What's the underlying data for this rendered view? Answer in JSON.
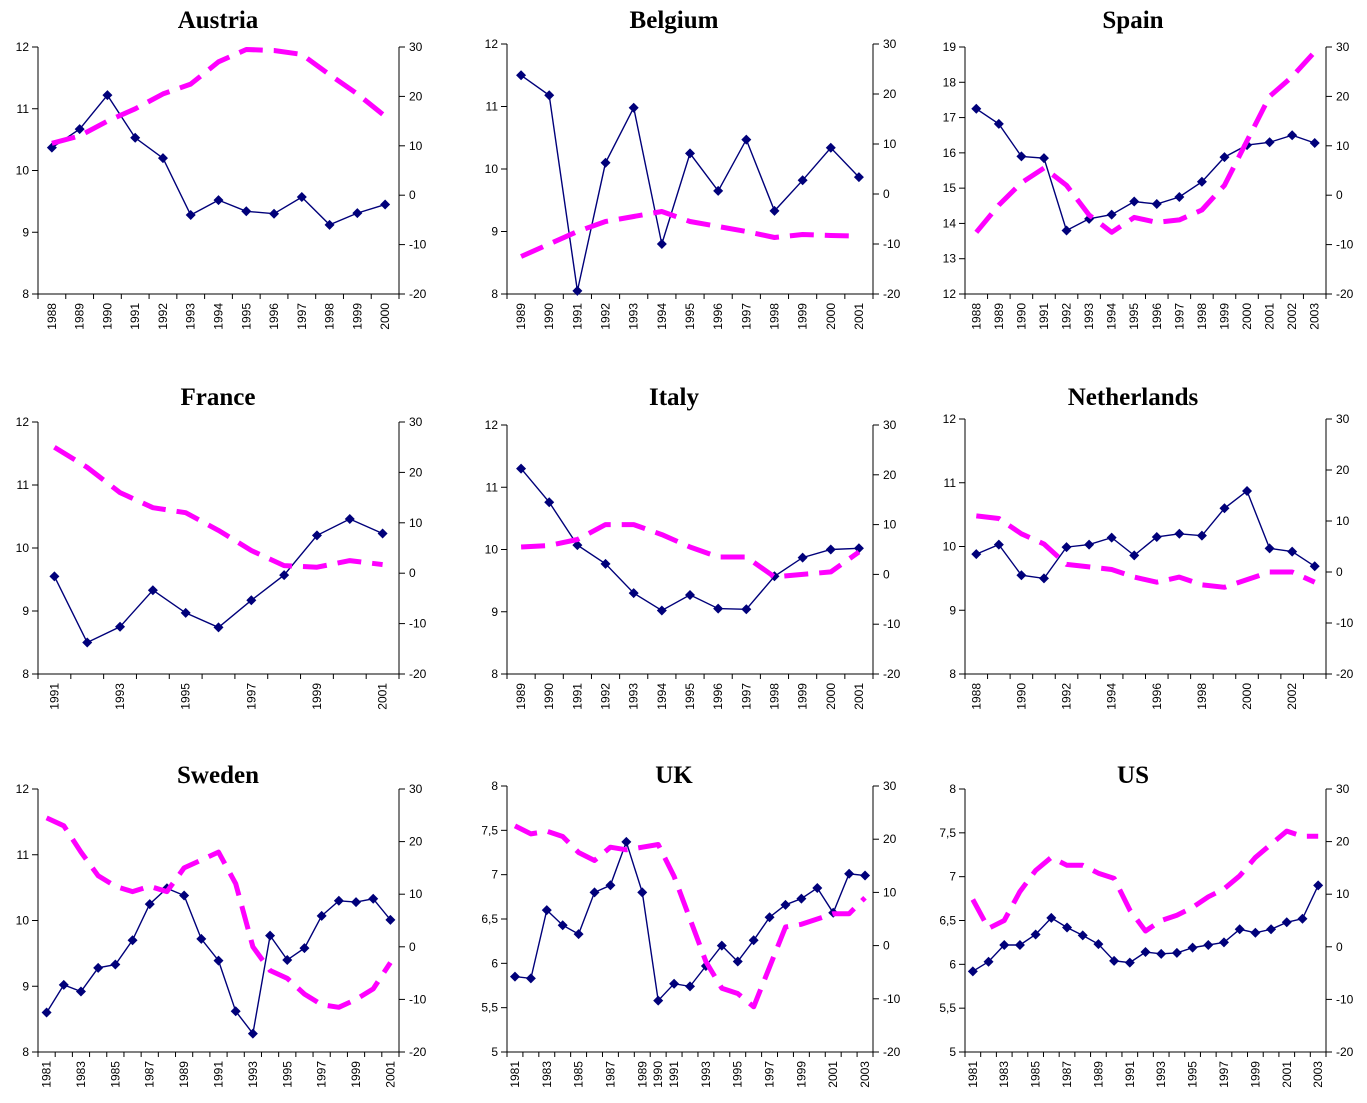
{
  "colors": {
    "solid": "#00007a",
    "dashed": "#ff00ff",
    "axis": "#000000"
  },
  "chart_data": [
    {
      "type": "line",
      "title": "Austria",
      "x": [
        1988,
        1989,
        1990,
        1991,
        1992,
        1993,
        1994,
        1995,
        1996,
        1997,
        1998,
        1999,
        2000
      ],
      "xtick_labels": [
        "1988",
        "1989",
        "1990",
        "1991",
        "1992",
        "1993",
        "1994",
        "1995",
        "1996",
        "1997",
        "1998",
        "1999",
        "2000"
      ],
      "ylim": [
        8,
        12
      ],
      "yticks": [
        "8",
        "9",
        "10",
        "11",
        "12"
      ],
      "y2lim": [
        -20,
        30
      ],
      "y2ticks": [
        "-20",
        "-10",
        "0",
        "10",
        "20",
        "30"
      ],
      "series": [
        {
          "axis": "left",
          "style": "solid-markers",
          "values": [
            10.37,
            10.67,
            11.22,
            10.53,
            10.2,
            9.28,
            9.52,
            9.34,
            9.3,
            9.57,
            9.12,
            9.31,
            9.45
          ]
        },
        {
          "axis": "right",
          "style": "dashed",
          "values": [
            10.5,
            12,
            15,
            17.5,
            20.5,
            22.5,
            27,
            29.5,
            29.3,
            28.5,
            24.4,
            20.5,
            16
          ]
        }
      ]
    },
    {
      "type": "line",
      "title": "Belgium",
      "x": [
        1989,
        1990,
        1991,
        1992,
        1993,
        1994,
        1995,
        1996,
        1997,
        1998,
        1999,
        2000,
        2001
      ],
      "xtick_labels": [
        "1989",
        "1990",
        "1991",
        "1992",
        "1993",
        "1994",
        "1995",
        "1996",
        "1997",
        "1998",
        "1999",
        "2000",
        "2001"
      ],
      "ylim": [
        8,
        12
      ],
      "yticks": [
        "8",
        "9",
        "10",
        "11",
        "12"
      ],
      "y2lim": [
        -20,
        30
      ],
      "y2ticks": [
        "-20",
        "-10",
        "0",
        "10",
        "20",
        "30"
      ],
      "series": [
        {
          "axis": "left",
          "style": "solid-markers",
          "values": [
            11.5,
            11.18,
            8.05,
            10.1,
            10.98,
            8.8,
            10.25,
            9.65,
            10.47,
            9.33,
            9.82,
            10.34,
            9.87
          ]
        },
        {
          "axis": "right",
          "style": "dashed",
          "values": [
            -12.5,
            -10,
            -7.5,
            -5.5,
            -4.5,
            -3.5,
            -5.5,
            -6.5,
            -7.5,
            -8.7,
            -8.1,
            -8.3,
            -8.4
          ]
        }
      ]
    },
    {
      "type": "line",
      "title": "Spain",
      "x": [
        1988,
        1989,
        1990,
        1991,
        1992,
        1993,
        1994,
        1995,
        1996,
        1997,
        1998,
        1999,
        2000,
        2001,
        2002,
        2003
      ],
      "xtick_labels": [
        "1988",
        "1989",
        "1990",
        "1991",
        "1992",
        "1993",
        "1994",
        "1995",
        "1996",
        "1997",
        "1998",
        "1999",
        "2000",
        "2001",
        "2002",
        "2003"
      ],
      "ylim": [
        12,
        19
      ],
      "yticks": [
        "12",
        "13",
        "14",
        "15",
        "16",
        "17",
        "18",
        "19"
      ],
      "y2lim": [
        -20,
        30
      ],
      "y2ticks": [
        "-20",
        "-10",
        "0",
        "10",
        "20",
        "30"
      ],
      "series": [
        {
          "axis": "left",
          "style": "solid-markers",
          "values": [
            17.25,
            16.82,
            15.9,
            15.85,
            13.8,
            14.13,
            14.25,
            14.62,
            14.55,
            14.75,
            15.18,
            15.88,
            16.22,
            16.3,
            16.5,
            16.28
          ]
        },
        {
          "axis": "right",
          "style": "dashed",
          "values": [
            -7.5,
            -2,
            2.5,
            5.5,
            2,
            -4,
            -7.5,
            -4.5,
            -5.5,
            -5,
            -3,
            2,
            11,
            20,
            24,
            29
          ]
        }
      ]
    },
    {
      "type": "line",
      "title": "France",
      "x": [
        1991,
        1992,
        1993,
        1994,
        1995,
        1996,
        1997,
        1998,
        1999,
        2000,
        2001
      ],
      "xtick_labels": [
        "1991",
        "",
        "1993",
        "",
        "1995",
        "",
        "1997",
        "",
        "1999",
        "",
        "2001"
      ],
      "ylim": [
        8,
        12
      ],
      "yticks": [
        "8",
        "9",
        "10",
        "11",
        "12"
      ],
      "y2lim": [
        -20,
        30
      ],
      "y2ticks": [
        "-20",
        "-10",
        "0",
        "10",
        "20",
        "30"
      ],
      "series": [
        {
          "axis": "left",
          "style": "solid-markers",
          "values": [
            9.55,
            8.5,
            8.75,
            9.33,
            8.97,
            8.74,
            9.17,
            9.57,
            10.2,
            10.46,
            10.23
          ]
        },
        {
          "axis": "right",
          "style": "dashed",
          "values": [
            25,
            21,
            16,
            13,
            12,
            8.5,
            4.5,
            1.5,
            1.2,
            2.5,
            1.7
          ]
        }
      ]
    },
    {
      "type": "line",
      "title": "Italy",
      "x": [
        1989,
        1990,
        1991,
        1992,
        1993,
        1994,
        1995,
        1996,
        1997,
        1998,
        1999,
        2000,
        2001
      ],
      "xtick_labels": [
        "1989",
        "1990",
        "1991",
        "1992",
        "1993",
        "1994",
        "1995",
        "1996",
        "1997",
        "1998",
        "1999",
        "2000",
        "2001"
      ],
      "ylim": [
        8,
        12
      ],
      "yticks": [
        "8",
        "9",
        "10",
        "11",
        "12"
      ],
      "y2lim": [
        -20,
        30
      ],
      "y2ticks": [
        "-20",
        "-10",
        "0",
        "10",
        "20",
        "30"
      ],
      "series": [
        {
          "axis": "left",
          "style": "solid-markers",
          "values": [
            11.3,
            10.76,
            10.07,
            9.77,
            9.3,
            9.02,
            9.27,
            9.05,
            9.04,
            9.57,
            9.87,
            10,
            10.02
          ]
        },
        {
          "axis": "right",
          "style": "dashed",
          "values": [
            5.5,
            5.8,
            7,
            10,
            10,
            8,
            5.5,
            3.5,
            3.5,
            -0.5,
            0,
            0.5,
            4.5
          ]
        }
      ]
    },
    {
      "type": "line",
      "title": "Netherlands",
      "x": [
        1988,
        1989,
        1990,
        1991,
        1992,
        1993,
        1994,
        1995,
        1996,
        1997,
        1998,
        1999,
        2000,
        2001,
        2002,
        2003
      ],
      "xtick_labels": [
        "1988",
        "",
        "1990",
        "",
        "1992",
        "",
        "1994",
        "",
        "1996",
        "",
        "1998",
        "",
        "2000",
        "",
        "2002",
        ""
      ],
      "ylim": [
        8,
        12
      ],
      "yticks": [
        "8",
        "9",
        "10",
        "11",
        "12"
      ],
      "y2lim": [
        -20,
        30
      ],
      "y2ticks": [
        "-20",
        "-10",
        "0",
        "10",
        "20",
        "30"
      ],
      "series": [
        {
          "axis": "left",
          "style": "solid-markers",
          "values": [
            9.88,
            10.03,
            9.55,
            9.5,
            9.99,
            10.03,
            10.14,
            9.86,
            10.15,
            10.2,
            10.17,
            10.6,
            10.87,
            9.97,
            9.92,
            9.69
          ]
        },
        {
          "axis": "right",
          "style": "dashed",
          "values": [
            11,
            10.5,
            7.5,
            5.5,
            1.5,
            1,
            0.5,
            -1,
            -2,
            -1,
            -2.5,
            -3,
            -1.5,
            0,
            0,
            -2
          ]
        }
      ]
    },
    {
      "type": "line",
      "title": "Sweden",
      "x": [
        1981,
        1982,
        1983,
        1984,
        1985,
        1986,
        1987,
        1988,
        1989,
        1990,
        1991,
        1992,
        1993,
        1994,
        1995,
        1996,
        1997,
        1998,
        1999,
        2000,
        2001
      ],
      "xtick_labels": [
        "1981",
        "",
        "1983",
        "",
        "1985",
        "",
        "1987",
        "",
        "1989",
        "",
        "1991",
        "",
        "1993",
        "",
        "1995",
        "",
        "1997",
        "",
        "1999",
        "",
        "2001"
      ],
      "ylim": [
        8,
        12
      ],
      "yticks": [
        "8",
        "9",
        "10",
        "11",
        "12"
      ],
      "y2lim": [
        -20,
        30
      ],
      "y2ticks": [
        "-20",
        "-10",
        "0",
        "10",
        "20",
        "30"
      ],
      "series": [
        {
          "axis": "left",
          "style": "solid-markers",
          "values": [
            8.6,
            9.02,
            8.92,
            9.28,
            9.33,
            9.7,
            10.25,
            10.49,
            10.38,
            9.72,
            9.39,
            8.62,
            8.28,
            9.77,
            9.4,
            9.58,
            10.07,
            10.3,
            10.28,
            10.33,
            10.01
          ]
        },
        {
          "axis": "right",
          "style": "dashed",
          "values": [
            24.5,
            23,
            18,
            13.5,
            11.5,
            10.5,
            11.5,
            10.5,
            15,
            16.5,
            18,
            12,
            0,
            -4.5,
            -6,
            -9,
            -11,
            -11.5,
            -10,
            -8,
            -3
          ]
        }
      ]
    },
    {
      "type": "line",
      "title": "UK",
      "x": [
        1981,
        1982,
        1983,
        1984,
        1985,
        1986,
        1987,
        1988,
        1989,
        1990,
        1991,
        1992,
        1993,
        1994,
        1995,
        1996,
        1997,
        1998,
        1999,
        2000,
        2001,
        2002,
        2003
      ],
      "xtick_labels": [
        "1981",
        "",
        "1983",
        "",
        "1985",
        "",
        "1987",
        "",
        "1989",
        "1990",
        "1991",
        "",
        "1993",
        "",
        "1995",
        "",
        "1997",
        "",
        "1999",
        "",
        "2001",
        "",
        "2003"
      ],
      "ylim": [
        5,
        8
      ],
      "yticks": [
        "5",
        "5,5",
        "6",
        "6,5",
        "7",
        "7,5",
        "8"
      ],
      "y2lim": [
        -20,
        30
      ],
      "y2ticks": [
        "-20",
        "-10",
        "0",
        "10",
        "20",
        "30"
      ],
      "series": [
        {
          "axis": "left",
          "style": "solid-markers",
          "values": [
            5.85,
            5.83,
            6.6,
            6.43,
            6.33,
            6.8,
            6.88,
            7.37,
            6.8,
            5.58,
            5.77,
            5.74,
            5.97,
            6.2,
            6.02,
            6.26,
            6.52,
            6.66,
            6.73,
            6.85,
            6.57,
            7.01,
            6.99
          ]
        },
        {
          "axis": "right",
          "style": "dashed",
          "values": [
            22.5,
            21,
            21.5,
            20.5,
            17.5,
            16,
            18.5,
            18,
            18.5,
            19,
            13,
            5,
            -3,
            -8,
            -9,
            -11.5,
            -4,
            3.5,
            4,
            5,
            6,
            6,
            9
          ]
        }
      ]
    },
    {
      "type": "line",
      "title": "US",
      "x": [
        1981,
        1982,
        1983,
        1984,
        1985,
        1986,
        1987,
        1988,
        1989,
        1990,
        1991,
        1992,
        1993,
        1994,
        1995,
        1996,
        1997,
        1998,
        1999,
        2000,
        2001,
        2002,
        2003
      ],
      "xtick_labels": [
        "1981",
        "",
        "1983",
        "",
        "1985",
        "",
        "1987",
        "",
        "1989",
        "",
        "1991",
        "",
        "1993",
        "",
        "1995",
        "",
        "1997",
        "",
        "1999",
        "",
        "2001",
        "",
        "2003"
      ],
      "ylim": [
        5,
        8
      ],
      "yticks": [
        "5",
        "5,5",
        "6",
        "6,5",
        "7",
        "7,5",
        "8"
      ],
      "y2lim": [
        -20,
        30
      ],
      "y2ticks": [
        "-20",
        "-10",
        "0",
        "10",
        "20",
        "30"
      ],
      "series": [
        {
          "axis": "left",
          "style": "solid-markers",
          "values": [
            5.92,
            6.03,
            6.22,
            6.22,
            6.34,
            6.53,
            6.42,
            6.33,
            6.23,
            6.04,
            6.02,
            6.14,
            6.12,
            6.13,
            6.19,
            6.22,
            6.25,
            6.4,
            6.36,
            6.4,
            6.48,
            6.52,
            6.9
          ]
        },
        {
          "axis": "right",
          "style": "dashed",
          "values": [
            9,
            3.5,
            5,
            10.5,
            14.5,
            17,
            15.5,
            15.5,
            14,
            13,
            7,
            3,
            5,
            6,
            7.5,
            9.5,
            11,
            13.5,
            17,
            19.5,
            22,
            21,
            21
          ]
        }
      ]
    }
  ]
}
